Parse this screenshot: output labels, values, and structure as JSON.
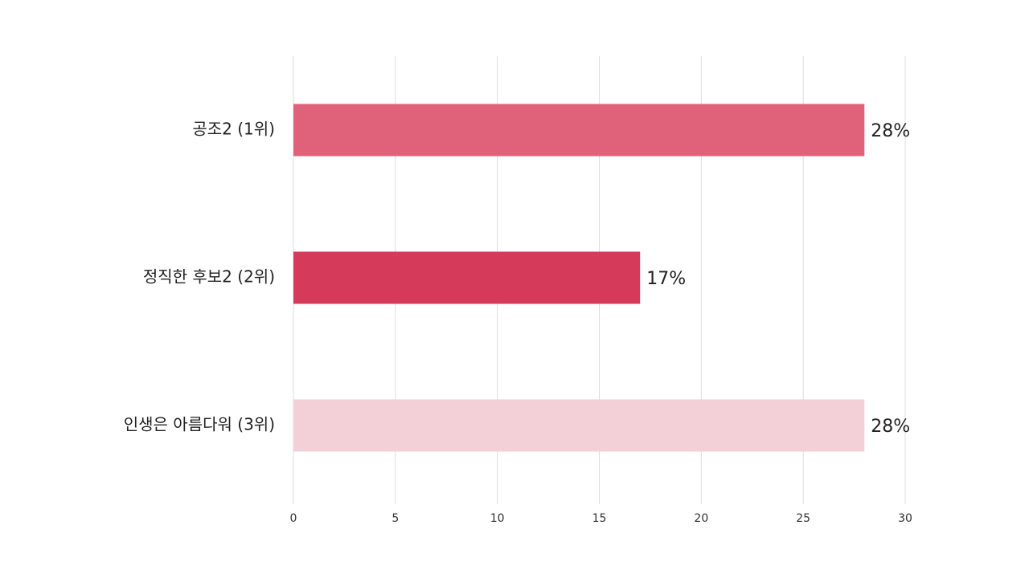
{
  "chart_data": {
    "type": "bar",
    "orientation": "horizontal",
    "categories": [
      "공조2 (1위)",
      "정직한 후보2 (2위)",
      "인생은 아름다워 (3위)"
    ],
    "values": [
      28,
      17,
      28
    ],
    "value_labels": [
      "28%",
      "17%",
      "28%"
    ],
    "colors": [
      "#e0627a",
      "#d63a5a",
      "#f3cfd7"
    ],
    "xlim": [
      0,
      30
    ],
    "xticks": [
      0,
      5,
      10,
      15,
      20,
      25,
      30
    ],
    "grid": true
  }
}
